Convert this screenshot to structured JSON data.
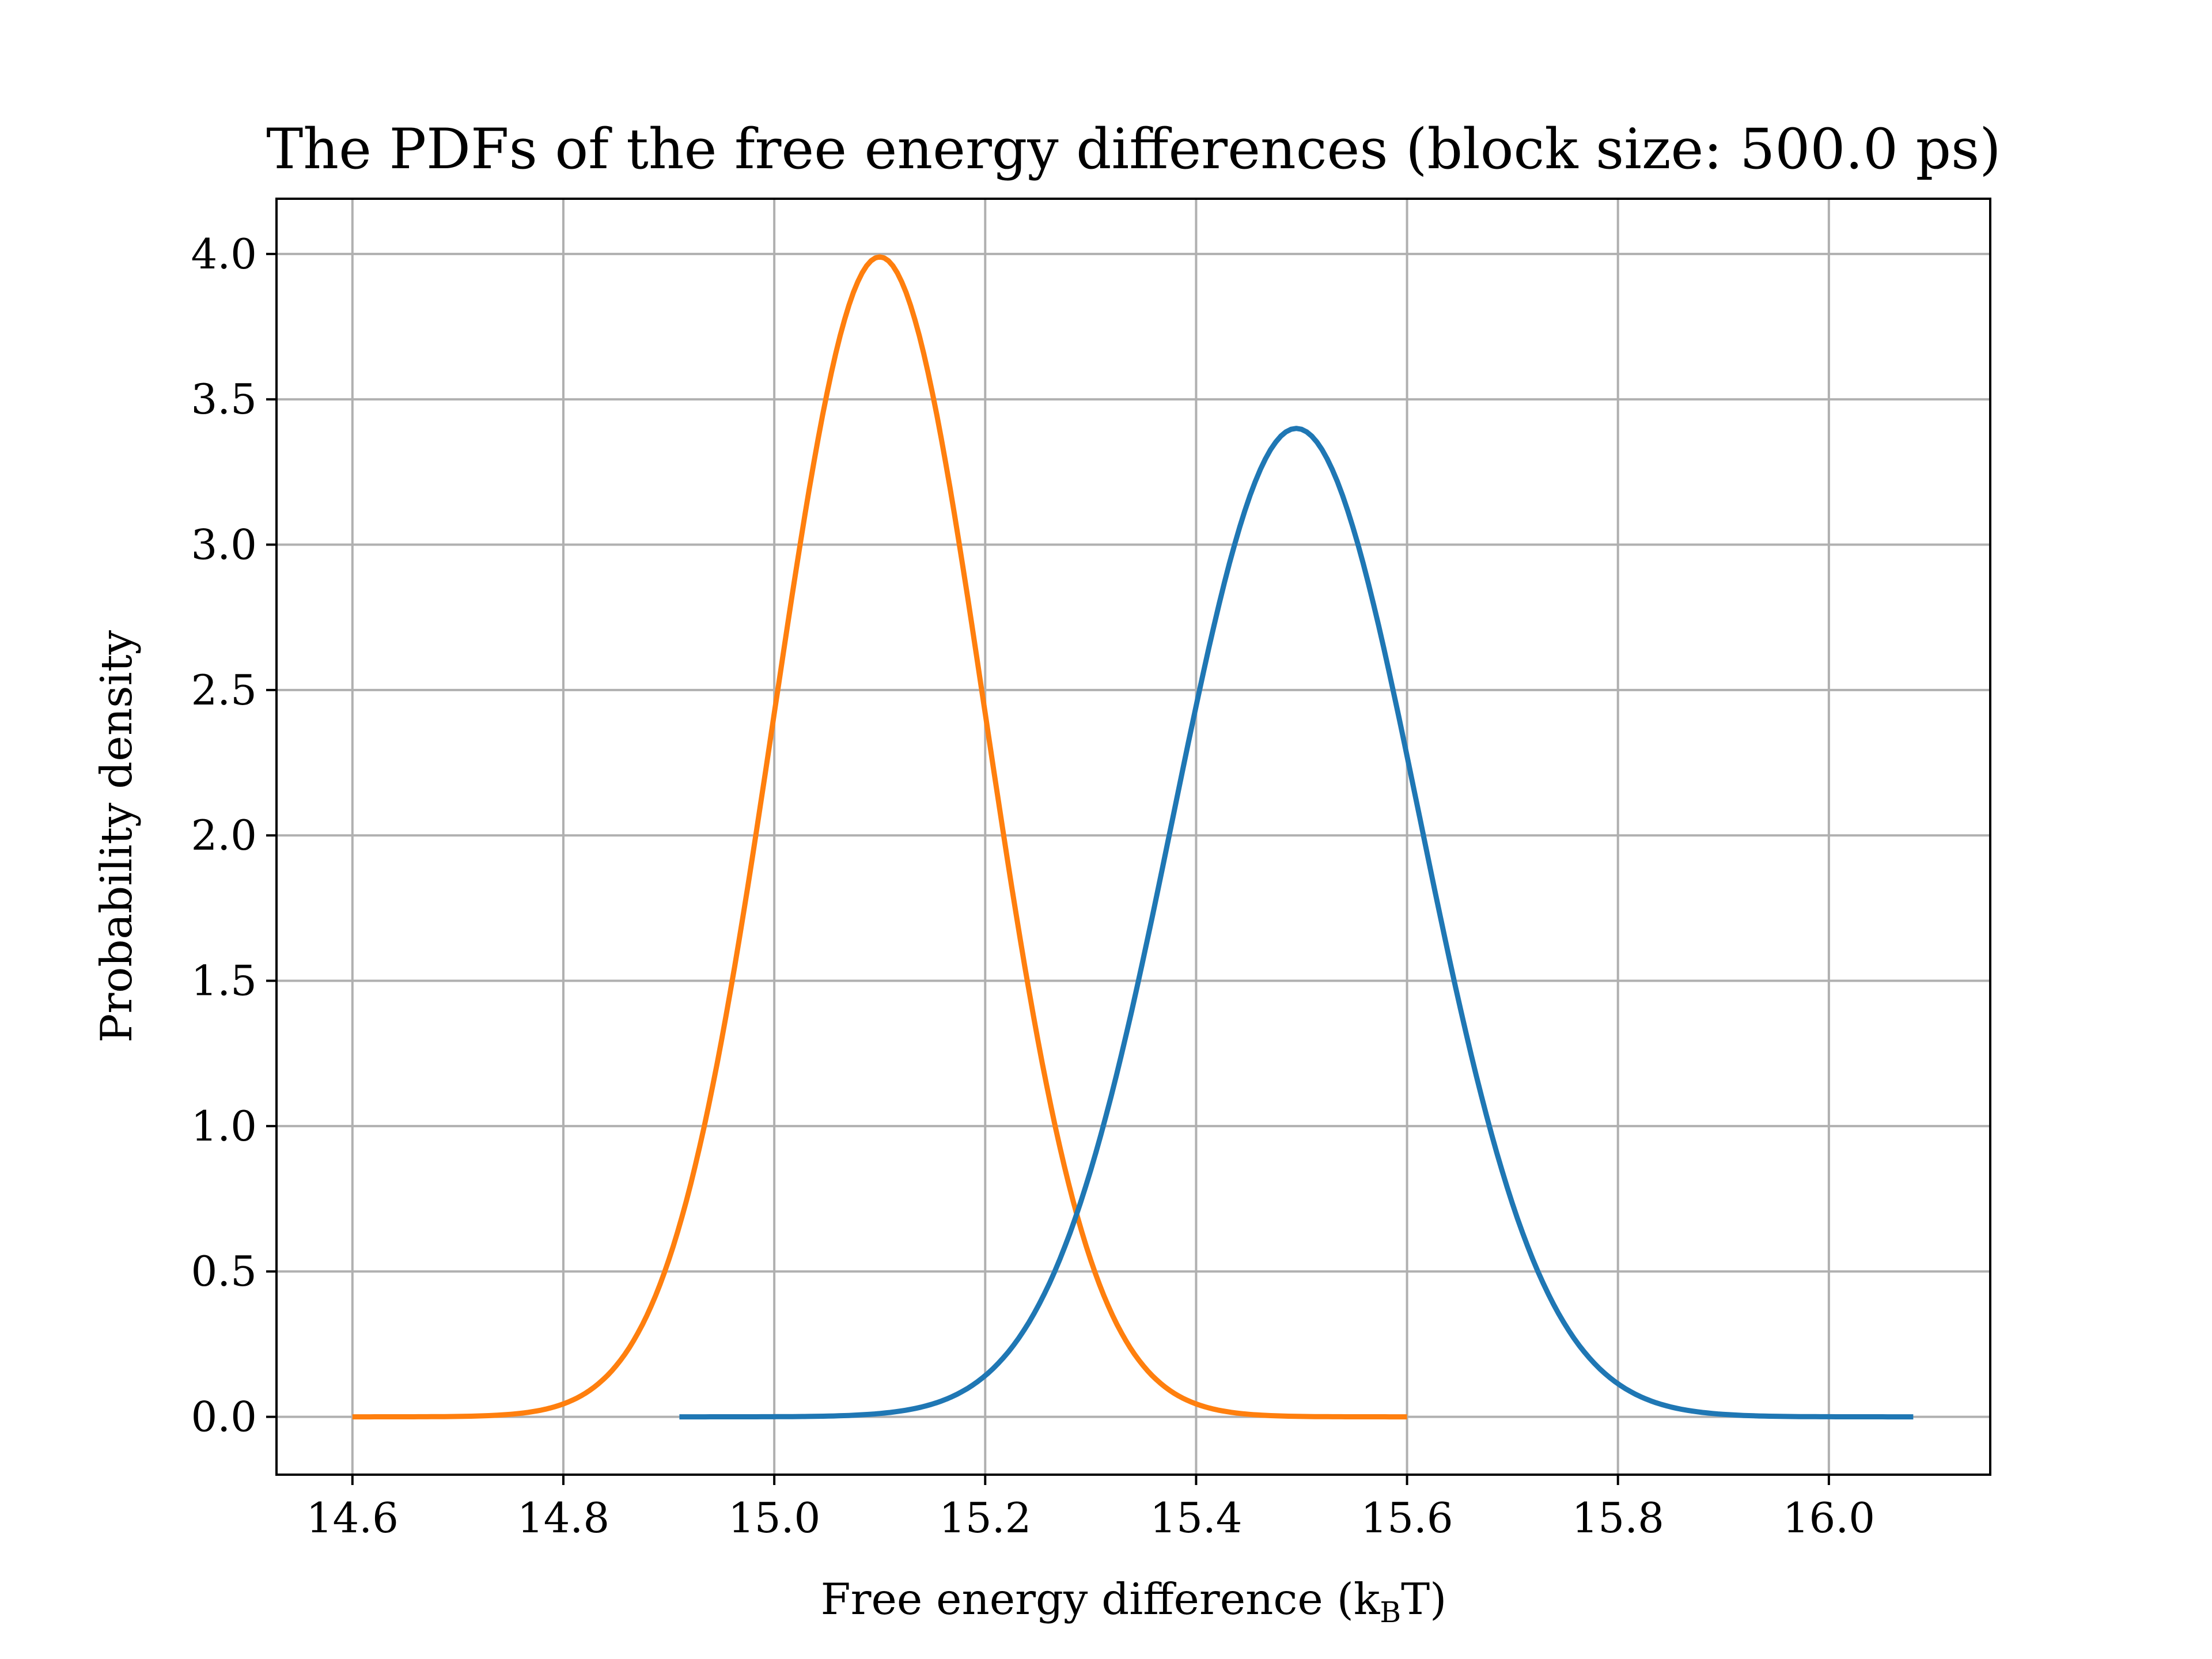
{
  "chart_data": {
    "type": "line",
    "title": "The PDFs of the free energy differences (block size: 500.0 ps)",
    "xlabel_main": "Free energy difference (k",
    "xlabel_sub": "B",
    "xlabel_tail": "T)",
    "ylabel": "Probability density",
    "xlim": [
      14.528,
      16.153
    ],
    "ylim": [
      -0.199,
      4.19
    ],
    "xticks": [
      14.6,
      14.8,
      15.0,
      15.2,
      15.4,
      15.6,
      15.8,
      16.0
    ],
    "xtick_labels": [
      "14.6",
      "14.8",
      "15.0",
      "15.2",
      "15.4",
      "15.6",
      "15.8",
      "16.0"
    ],
    "yticks": [
      0.0,
      0.5,
      1.0,
      1.5,
      2.0,
      2.5,
      3.0,
      3.5,
      4.0
    ],
    "ytick_labels": [
      "0.0",
      "0.5",
      "1.0",
      "1.5",
      "2.0",
      "2.5",
      "3.0",
      "3.5",
      "4.0"
    ],
    "grid": true,
    "colors": {
      "orange": "#ff7f0e",
      "blue": "#1f77b4",
      "grid": "#b0b0b0"
    },
    "series": [
      {
        "color": "#ff7f0e",
        "mean": 15.1,
        "sigma": 0.1,
        "peak": 3.99,
        "x_range": [
          14.6,
          15.6
        ]
      },
      {
        "color": "#1f77b4",
        "mean": 15.495,
        "sigma": 0.117,
        "peak": 3.4,
        "x_range": [
          14.91,
          16.08
        ]
      }
    ]
  }
}
